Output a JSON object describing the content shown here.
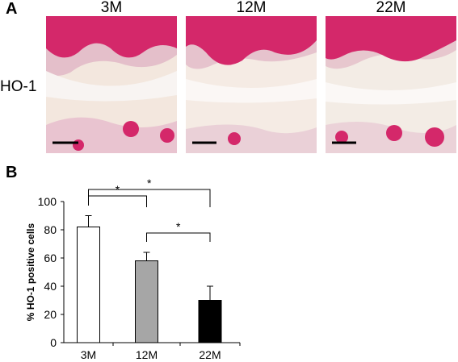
{
  "panel_a": {
    "label": "A",
    "row_label": "HO-1",
    "columns": [
      "3M",
      "12M",
      "22M"
    ],
    "stain_color": "#d4286a"
  },
  "panel_b": {
    "label": "B"
  },
  "chart_data": {
    "type": "bar",
    "categories": [
      "3M",
      "12M",
      "22M"
    ],
    "values": [
      82,
      58,
      30
    ],
    "errors": [
      8,
      6,
      10
    ],
    "bar_fills": [
      "#ffffff",
      "#a6a6a6",
      "#000000"
    ],
    "ylabel": "% HO-1  positive cells",
    "xlabel": "",
    "ylim": [
      0,
      100
    ],
    "yticks": [
      0,
      20,
      40,
      60,
      80,
      100
    ],
    "grid": false,
    "significance": [
      {
        "from": 0,
        "to": 1,
        "label": "*"
      },
      {
        "from": 0,
        "to": 2,
        "label": "*"
      },
      {
        "from": 1,
        "to": 2,
        "label": "*"
      }
    ]
  }
}
